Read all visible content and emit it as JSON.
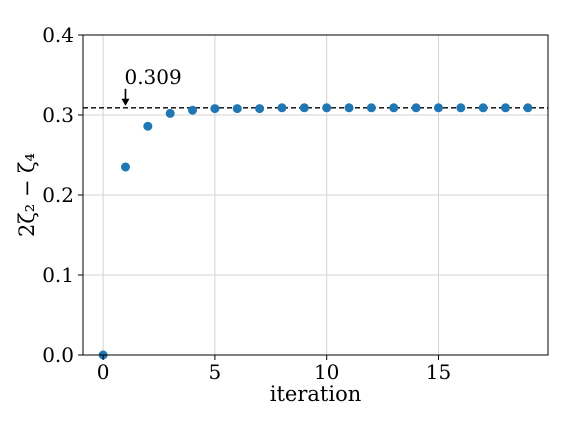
{
  "chart_data": {
    "type": "scatter",
    "title": "",
    "xlabel": "iteration",
    "ylabel": "2ζ₂ − ζ₄",
    "xlim": [
      -0.9,
      19.9
    ],
    "ylim": [
      0.0,
      0.4
    ],
    "xticks": [
      0,
      5,
      10,
      15
    ],
    "xtick_labels": [
      "0",
      "5",
      "10",
      "15"
    ],
    "yticks": [
      0.0,
      0.1,
      0.2,
      0.3,
      0.4
    ],
    "ytick_labels": [
      "0.0",
      "0.1",
      "0.2",
      "0.3",
      "0.4"
    ],
    "grid": true,
    "series": [
      {
        "x": [
          0,
          1,
          2,
          3,
          4,
          5,
          6,
          7,
          8,
          9,
          10,
          11,
          12,
          13,
          14,
          15,
          16,
          17,
          18,
          19
        ],
        "values": [
          0.0,
          0.235,
          0.286,
          0.302,
          0.306,
          0.308,
          0.308,
          0.308,
          0.309,
          0.309,
          0.309,
          0.309,
          0.309,
          0.309,
          0.309,
          0.309,
          0.309,
          0.309,
          0.309,
          0.309
        ],
        "color": "#1f77b4"
      }
    ],
    "reference_line": {
      "y": 0.309,
      "style": "dashed",
      "color": "#000000"
    },
    "annotation": {
      "text": "0.309",
      "x": 1,
      "y": 0.309
    }
  }
}
